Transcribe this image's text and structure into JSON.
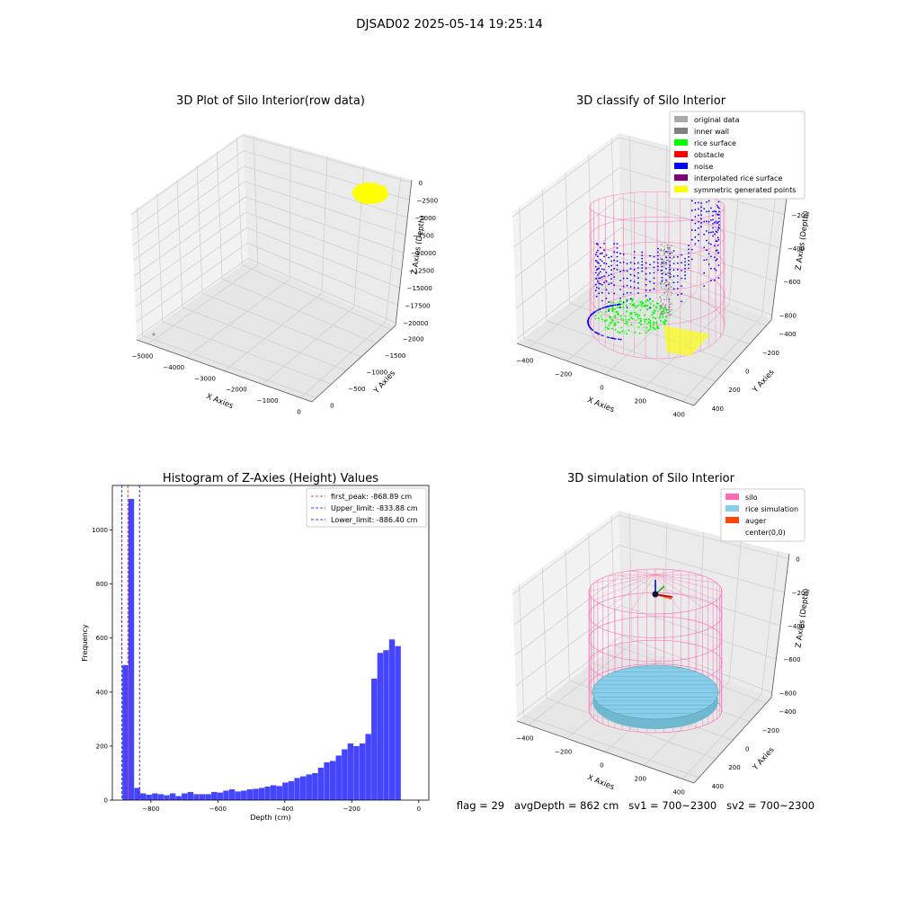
{
  "figure_title": "DJSAD02 2025-05-14 19:25:14",
  "colors": {
    "original": "#aaaaaa",
    "inner_wall": "#808080",
    "rice": "#00ff00",
    "obstacle": "#ff0000",
    "noise": "#0000ff",
    "interp": "#800080",
    "sym": "#ffff00",
    "silo": "#ff69b4",
    "rice_sim": "#87ceeb",
    "auger": "#ff4500",
    "hist_bar": "#4545ff",
    "peak_line": "#ff0000",
    "limit_line": "#0000ff"
  },
  "chart_data": [
    {
      "type": "scatter",
      "title": "3D Plot of Silo Interior(row data)",
      "xlabel": "X Axies",
      "ylabel": "Y Axies",
      "zlabel": "Z Axies (Depth)",
      "x_ticks": [
        "−5000",
        "−4000",
        "−3000",
        "−2000",
        "−1000",
        "0"
      ],
      "y_ticks": [
        "0",
        "−500",
        "−1000",
        "−1500",
        "−2000"
      ],
      "z_ticks": [
        "0",
        "−2500",
        "−5000",
        "−7500",
        "−10000",
        "−12500",
        "−15000",
        "−17500",
        "−20000"
      ],
      "note": "yellow point cluster near x≈0, y≈0, z≈−2500; one outlier near x≈−5000"
    },
    {
      "type": "scatter",
      "title": "3D classify of Silo Interior",
      "xlabel": "X Axies",
      "ylabel": "Y Axies",
      "zlabel": "Z Axies (Depth)",
      "x_ticks": [
        "−400",
        "−200",
        "0",
        "200",
        "400"
      ],
      "y_ticks": [
        "400",
        "200",
        "0",
        "−200",
        "−400"
      ],
      "z_ticks": [
        "0",
        "−200",
        "−400",
        "−600",
        "−800"
      ],
      "legend_position": "top-right",
      "legend": [
        {
          "label": "original data",
          "color": "#aaaaaa"
        },
        {
          "label": "inner wall",
          "color": "#808080"
        },
        {
          "label": "rice surface",
          "color": "#00ff00"
        },
        {
          "label": "obstacle",
          "color": "#ff0000"
        },
        {
          "label": "noise",
          "color": "#0000ff"
        },
        {
          "label": "interpolated rice surface",
          "color": "#800080"
        },
        {
          "label": "symmetric generated points",
          "color": "#ffff00"
        }
      ]
    },
    {
      "type": "bar",
      "title": "Histogram of Z-Axies (Height) Values",
      "xlabel": "Depth (cm)",
      "ylabel": "Frequency",
      "xlim": [
        -915,
        30
      ],
      "ylim": [
        0,
        1165
      ],
      "x_ticks": [
        -800,
        -600,
        -400,
        -200,
        0
      ],
      "x_tick_labels": [
        "−800",
        "−600",
        "−400",
        "−200",
        "0"
      ],
      "y_ticks": [
        0,
        200,
        400,
        600,
        800,
        1000
      ],
      "y_tick_labels": [
        "0",
        "200",
        "400",
        "600",
        "800",
        "1000"
      ],
      "bin_start": -885,
      "bin_width": 17.7,
      "values": [
        500,
        1115,
        45,
        25,
        20,
        25,
        22,
        18,
        25,
        15,
        25,
        30,
        22,
        22,
        22,
        30,
        28,
        35,
        40,
        32,
        35,
        40,
        42,
        45,
        50,
        55,
        52,
        65,
        70,
        82,
        88,
        95,
        100,
        120,
        140,
        145,
        165,
        188,
        210,
        200,
        210,
        245,
        450,
        545,
        555,
        595,
        570
      ],
      "legend_position": "top-right",
      "vlines": [
        {
          "label": "first_peak: -868.89 cm",
          "x": -868.89,
          "color": "#ff0000"
        },
        {
          "label": "Upper_limit: -833.88 cm",
          "x": -833.88,
          "color": "#0000ff"
        },
        {
          "label": "Lower_limit: -886.40 cm",
          "x": -886.4,
          "color": "#0000ff"
        }
      ]
    },
    {
      "type": "scatter",
      "title": "3D simulation of Silo Interior",
      "xlabel": "X Axies",
      "ylabel": "Y Axies",
      "zlabel": "Z Axies (Depth)",
      "x_ticks": [
        "−400",
        "−200",
        "0",
        "200",
        "400"
      ],
      "y_ticks": [
        "400",
        "200",
        "0",
        "−200",
        "−400"
      ],
      "z_ticks": [
        "0",
        "−200",
        "−400",
        "−600",
        "−800"
      ],
      "legend_position": "top-right",
      "legend": [
        {
          "label": "silo",
          "color": "#ff69b4"
        },
        {
          "label": "rice simulation",
          "color": "#87ceeb"
        },
        {
          "label": "auger",
          "color": "#ff4500"
        },
        {
          "label": "center(0,0)",
          "color": "#ffffff"
        }
      ]
    }
  ],
  "status_line": "flag = 29   avgDepth = 862 cm   sv1 = 700~2300   sv2 = 700~2300"
}
